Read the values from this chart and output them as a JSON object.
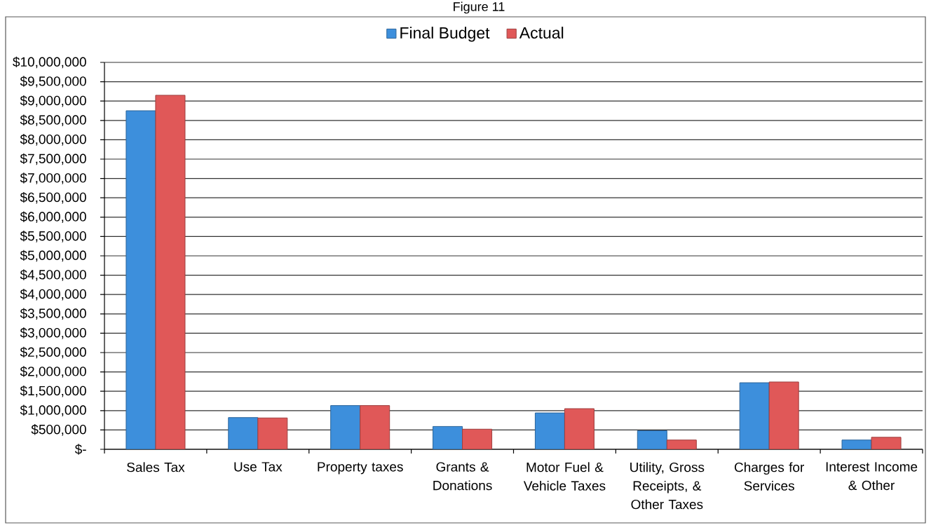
{
  "chart_data": {
    "type": "bar",
    "title": "Figure 11",
    "categories": [
      "Sales Tax",
      "Use Tax",
      "Property taxes",
      "Grants & Donations",
      "Motor Fuel & Vehicle Taxes",
      "Utility, Gross Receipts, & Other Taxes",
      "Charges for Services",
      "Interest Income & Other"
    ],
    "series": [
      {
        "name": "Final Budget",
        "color": "#3d8fdc",
        "values": [
          8750000,
          820000,
          1130000,
          590000,
          940000,
          480000,
          1720000,
          240000
        ]
      },
      {
        "name": "Actual",
        "color": "#e05858",
        "values": [
          9150000,
          810000,
          1130000,
          520000,
          1050000,
          240000,
          1740000,
          310000
        ]
      }
    ],
    "ylim": [
      0,
      10000000
    ],
    "yticks": [
      {
        "value": 0,
        "label": "$-"
      },
      {
        "value": 500000,
        "label": "$500,000"
      },
      {
        "value": 1000000,
        "label": "$1,000,000"
      },
      {
        "value": 1500000,
        "label": "$1,500,000"
      },
      {
        "value": 2000000,
        "label": "$2,000,000"
      },
      {
        "value": 2500000,
        "label": "$2,500,000"
      },
      {
        "value": 3000000,
        "label": "$3,000,000"
      },
      {
        "value": 3500000,
        "label": "$3,500,000"
      },
      {
        "value": 4000000,
        "label": "$4,000,000"
      },
      {
        "value": 4500000,
        "label": "$4,500,000"
      },
      {
        "value": 5000000,
        "label": "$5,000,000"
      },
      {
        "value": 5500000,
        "label": "$5,500,000"
      },
      {
        "value": 6000000,
        "label": "$6,000,000"
      },
      {
        "value": 6500000,
        "label": "$6,500,000"
      },
      {
        "value": 7000000,
        "label": "$7,000,000"
      },
      {
        "value": 7500000,
        "label": "$7,500,000"
      },
      {
        "value": 8000000,
        "label": "$8,000,000"
      },
      {
        "value": 8500000,
        "label": "$8,500,000"
      },
      {
        "value": 9000000,
        "label": "$9,000,000"
      },
      {
        "value": 9500000,
        "label": "$9,500,000"
      },
      {
        "value": 10000000,
        "label": "$10,000,000"
      }
    ],
    "grid": "y",
    "legend": "top"
  }
}
